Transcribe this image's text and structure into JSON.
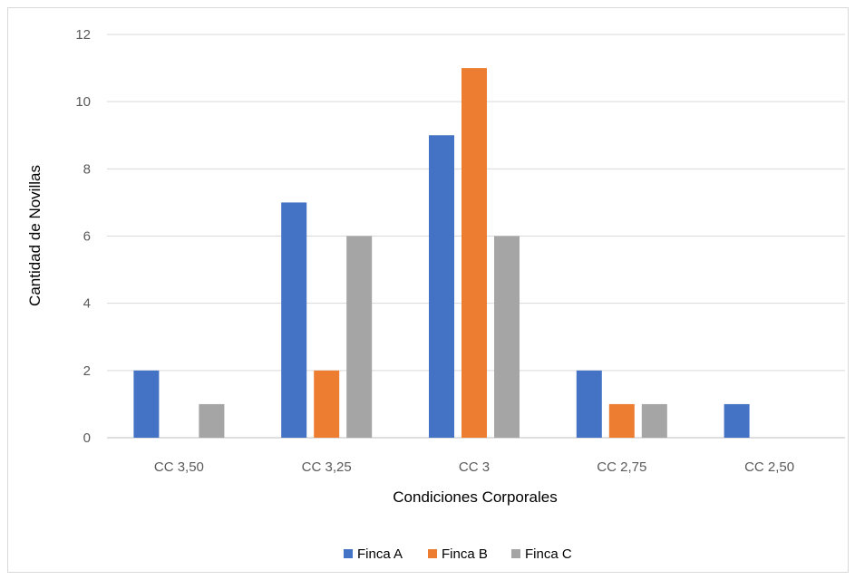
{
  "chart_data": {
    "type": "bar",
    "title": "",
    "xlabel": "Condiciones Corporales",
    "ylabel": "Cantidad de Novillas",
    "categories": [
      "CC 3,50",
      "CC 3,25",
      "CC 3",
      "CC 2,75",
      "CC 2,50"
    ],
    "series": [
      {
        "name": "Finca A",
        "color": "#4472C4",
        "values": [
          2,
          7,
          9,
          2,
          1
        ]
      },
      {
        "name": "Finca B",
        "color": "#ED7D31",
        "values": [
          0,
          2,
          11,
          1,
          0
        ]
      },
      {
        "name": "Finca C",
        "color": "#A5A5A5",
        "values": [
          1,
          6,
          6,
          1,
          0
        ]
      }
    ],
    "ylim": [
      0,
      12
    ],
    "yticks": [
      0,
      2,
      4,
      6,
      8,
      10,
      12
    ],
    "grid": true,
    "legend_position": "bottom"
  }
}
